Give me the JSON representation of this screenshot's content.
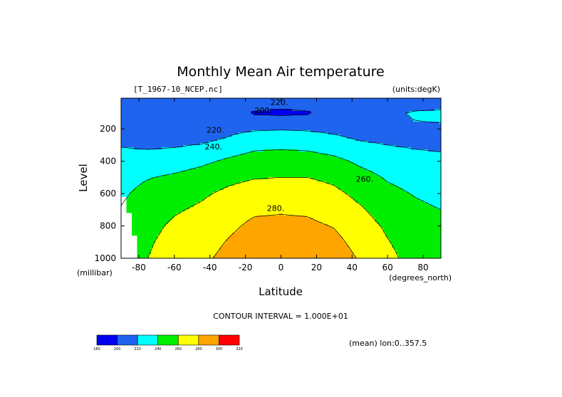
{
  "chart_data": {
    "type": "heatmap",
    "subtype": "filled-contour",
    "title": "Monthly Mean Air temperature",
    "file_label": "[T_1967-10_NCEP.nc]",
    "units_label": "(units:degK)",
    "xlabel": "Latitude",
    "x_units_label": "(degrees_north)",
    "ylabel": "Level",
    "y_units_label": "(millibar)",
    "xlim": [
      -90,
      90
    ],
    "ylim": [
      1000,
      10
    ],
    "x_ticks": [
      -80,
      -60,
      -40,
      -20,
      0,
      20,
      40,
      60,
      80
    ],
    "x_tick_labels": [
      "-80",
      "-60",
      "-40",
      "-20",
      "0",
      "20",
      "40",
      "60",
      "80"
    ],
    "y_ticks": [
      200,
      400,
      600,
      800,
      1000
    ],
    "y_tick_labels": [
      "200",
      "400",
      "600",
      "800",
      "1000"
    ],
    "contour_interval_text": "CONTOUR INTERVAL = 1.000E+01",
    "mean_text": "(mean) lon:0..357.5",
    "levels": [
      180,
      200,
      220,
      240,
      260,
      280,
      300,
      320
    ],
    "colorbar_labels": [
      "180",
      "200",
      "220",
      "240",
      "260",
      "280",
      "300",
      "320"
    ],
    "colors": [
      "#0000ee",
      "#1e64ee",
      "#00ffff",
      "#00ee00",
      "#ffff00",
      "#ffa500",
      "#ff0000"
    ],
    "contour_labels": [
      {
        "text": "200.",
        "lat": -10,
        "level": 85
      },
      {
        "text": "220.",
        "lat": -1,
        "level": 35
      },
      {
        "text": "220.",
        "lat": -37,
        "level": 205
      },
      {
        "text": "240.",
        "lat": -38,
        "level": 310
      },
      {
        "text": "260.",
        "lat": 47,
        "level": 510
      },
      {
        "text": "280.",
        "lat": -3,
        "level": 690
      }
    ],
    "field": {
      "lats": [
        -90,
        -75,
        -60,
        -45,
        -30,
        -15,
        0,
        15,
        30,
        45,
        60,
        75,
        90
      ],
      "levels": [
        10,
        50,
        100,
        150,
        200,
        250,
        300,
        400,
        500,
        600,
        700,
        800,
        900,
        1000
      ],
      "values": [
        [
          215,
          213,
          213,
          217,
          219,
          218,
          216,
          218,
          219,
          216,
          213,
          212,
          210
        ],
        [
          212,
          210,
          211,
          217,
          214,
          207,
          205,
          207,
          214,
          217,
          216,
          216,
          217
        ],
        [
          211,
          208,
          209,
          216,
          210,
          198,
          196,
          198,
          210,
          215,
          218,
          221,
          222
        ],
        [
          212,
          208,
          208,
          214,
          212,
          208,
          207,
          208,
          212,
          214,
          217,
          220,
          221
        ],
        [
          213,
          208,
          208,
          211,
          216,
          218,
          219,
          218,
          216,
          214,
          215,
          216,
          217
        ],
        [
          216,
          211,
          210,
          213,
          220,
          226,
          227,
          226,
          222,
          217,
          216,
          216,
          216
        ],
        [
          219,
          217,
          218,
          221,
          228,
          235,
          236,
          235,
          230,
          223,
          220,
          218,
          217
        ],
        [
          227,
          228,
          231,
          236,
          243,
          249,
          250,
          249,
          245,
          236,
          230,
          226,
          224
        ],
        [
          233,
          239,
          243,
          248,
          255,
          259,
          260,
          260,
          256,
          247,
          238,
          233,
          230
        ],
        [
          237,
          246,
          252,
          257,
          264,
          269,
          270,
          269,
          264,
          255,
          245,
          239,
          235
        ],
        [
          241,
          251,
          258,
          263,
          271,
          277,
          278,
          277,
          271,
          262,
          251,
          244,
          240
        ],
        [
          244,
          255,
          263,
          268,
          276,
          284,
          285,
          284,
          279,
          268,
          257,
          248,
          246
        ],
        [
          246,
          258,
          266,
          272,
          281,
          289,
          291,
          292,
          285,
          273,
          261,
          251,
          249
        ],
        [
          248,
          260,
          268,
          276,
          285,
          292,
          294,
          296,
          290,
          278,
          265,
          253,
          251
        ]
      ]
    },
    "missing_regions": [
      {
        "lat_from": -90,
        "lat_to": -87,
        "level_from": 620,
        "level_to": 1000
      },
      {
        "lat_from": -87,
        "lat_to": -84,
        "level_from": 720,
        "level_to": 1000
      },
      {
        "lat_from": -84,
        "lat_to": -81,
        "level_from": 860,
        "level_to": 1000
      }
    ]
  }
}
